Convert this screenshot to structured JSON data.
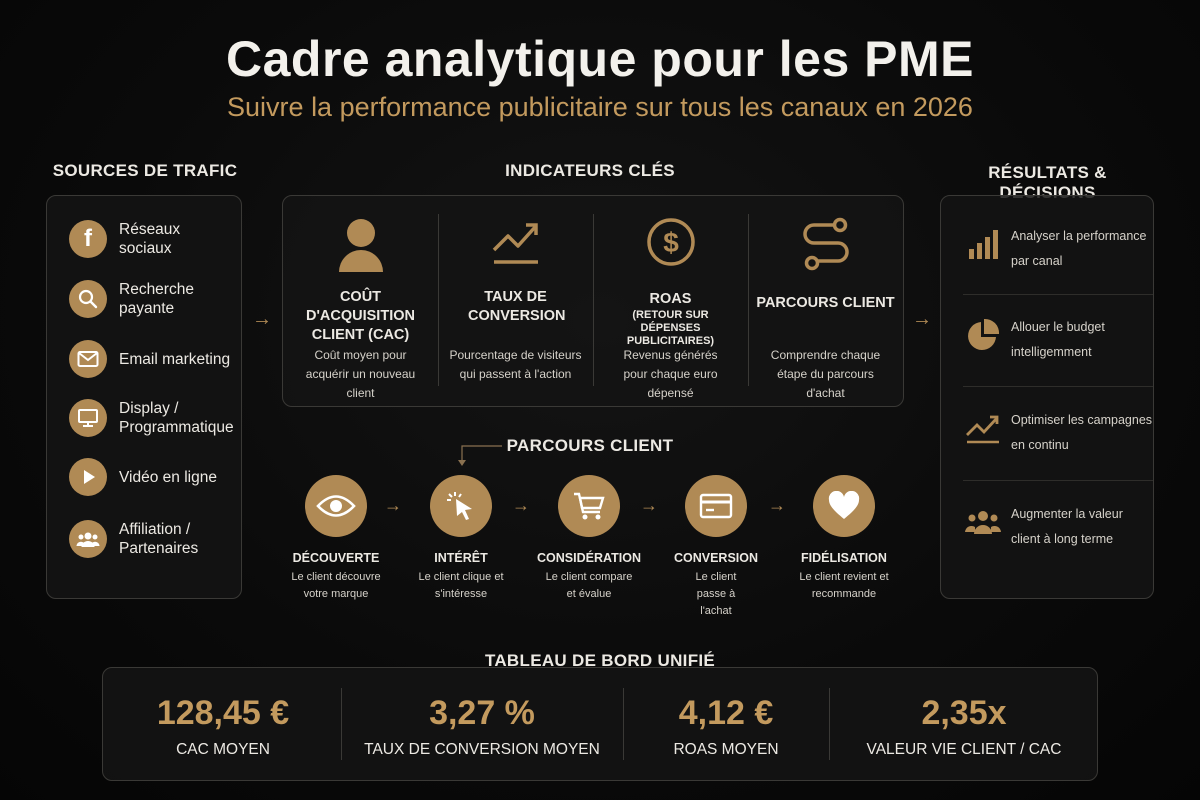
{
  "header": {
    "title": "Cadre analytique pour les PME",
    "subtitle": "Suivre la performance publicitaire sur tous les canaux en 2026"
  },
  "sources": {
    "heading": "SOURCES DE TRAFIC",
    "items": [
      {
        "label": "Réseaux sociaux",
        "icon": "facebook-icon"
      },
      {
        "label": "Recherche payante",
        "icon": "search-icon"
      },
      {
        "label": "Email marketing",
        "icon": "envelope-icon"
      },
      {
        "label": "Display / Programmatique",
        "icon": "monitor-icon"
      },
      {
        "label": "Vidéo en ligne",
        "icon": "play-icon"
      },
      {
        "label": "Affiliation / Partenaires",
        "icon": "users-icon"
      }
    ]
  },
  "indicators": {
    "heading": "INDICATEURS CLÉS",
    "items": [
      {
        "title": "COÛT D'ACQUISITION CLIENT (CAC)",
        "sub": "",
        "desc": "Coût moyen pour acquérir un nouveau client",
        "icon": "person-icon"
      },
      {
        "title": "TAUX DE CONVERSION",
        "sub": "",
        "desc": "Pourcentage de visiteurs qui passent à l'action",
        "icon": "trend-up-icon"
      },
      {
        "title": "ROAS",
        "sub": "(RETOUR SUR DÉPENSES PUBLICITAIRES)",
        "desc": "Revenus générés pour chaque euro dépensé",
        "icon": "dollar-icon"
      },
      {
        "title": "PARCOURS CLIENT",
        "sub": "",
        "desc": "Comprendre chaque étape du parcours d'achat",
        "icon": "route-icon"
      }
    ]
  },
  "journey": {
    "heading": "PARCOURS CLIENT",
    "steps": [
      {
        "title": "DÉCOUVERTE",
        "desc": "Le client découvre votre marque",
        "icon": "eye-icon"
      },
      {
        "title": "INTÉRÊT",
        "desc": "Le client clique et s'intéresse",
        "icon": "cursor-click-icon"
      },
      {
        "title": "CONSIDÉRATION",
        "desc": "Le client compare et évalue",
        "icon": "cart-icon"
      },
      {
        "title": "CONVERSION",
        "desc": "Le client passe à l'achat",
        "icon": "card-icon"
      },
      {
        "title": "FIDÉLISATION",
        "desc": "Le client revient et recommande",
        "icon": "heart-icon"
      }
    ]
  },
  "results": {
    "heading": "RÉSULTATS & DÉCISIONS",
    "items": [
      {
        "label": "Analyser la performance par canal",
        "icon": "bar-chart-icon"
      },
      {
        "label": "Allouer le budget intelligemment",
        "icon": "pie-chart-icon"
      },
      {
        "label": "Optimiser les campagnes en continu",
        "icon": "trend-line-icon"
      },
      {
        "label": "Augmenter la valeur client à long terme",
        "icon": "group-icon"
      }
    ]
  },
  "dashboard": {
    "heading": "TABLEAU DE BORD UNIFIÉ",
    "metrics": [
      {
        "value": "128,45 €",
        "label": "CAC MOYEN"
      },
      {
        "value": "3,27 %",
        "label": "TAUX DE CONVERSION MOYEN"
      },
      {
        "value": "4,12 €",
        "label": "ROAS MOYEN"
      },
      {
        "value": "2,35x",
        "label": "VALEUR VIE CLIENT / CAC"
      }
    ]
  },
  "colors": {
    "accent": "#c39a5e",
    "icon_fill": "#b08a55",
    "background": "#0a0a0a"
  }
}
